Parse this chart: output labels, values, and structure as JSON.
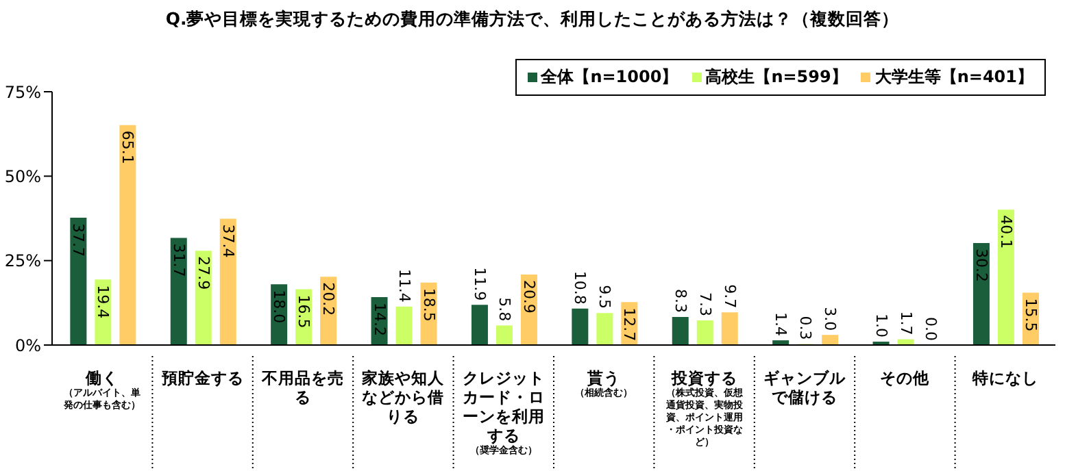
{
  "chart_data": {
    "type": "bar",
    "title": "Q.夢や目標を実現するための費用の準備方法で、利用したことがある方法は？（複数回答）",
    "categories": [
      "働く（アルバイト、単発の仕事も含む）",
      "預貯金する",
      "不用品を売る",
      "家族や知人などから借りる",
      "クレジットカード・ローンを利用する（奨学金含む）",
      "貰う（相続含む）",
      "投資する（株式投資、仮想通貨投資、実物投資、ポイント運用・ポイント投資など）",
      "ギャンブルで儲ける",
      "その他",
      "特になし"
    ],
    "series": [
      {
        "name": "全体【n=1000】",
        "color": "#1b5e3b",
        "values": [
          37.7,
          31.7,
          18.0,
          14.2,
          11.9,
          10.8,
          8.3,
          1.4,
          1.0,
          30.2
        ],
        "value_labels": [
          "37.7",
          "31.7",
          "18.0",
          "14.2",
          "11.9",
          "10.8",
          "8.3",
          "1.4",
          "1.0",
          "30.2"
        ]
      },
      {
        "name": "高校生【n=599】",
        "color": "#ccff66",
        "values": [
          19.4,
          27.9,
          16.5,
          11.4,
          5.8,
          9.5,
          7.3,
          0.3,
          1.7,
          40.1
        ],
        "value_labels": [
          "19.4",
          "27.9",
          "16.5",
          "11.4",
          "5.8",
          "9.5",
          "7.3",
          "0.3",
          "1.7",
          "40.1"
        ]
      },
      {
        "name": "大学生等【n=401】",
        "color": "#ffcc66",
        "values": [
          65.1,
          37.4,
          20.2,
          18.5,
          20.9,
          12.7,
          9.7,
          3.0,
          0.0,
          15.5
        ],
        "value_labels": [
          "65.1",
          "37.4",
          "20.2",
          "18.5",
          "20.9",
          "12.7",
          "9.7",
          "3.0",
          "0.0",
          "15.5"
        ]
      }
    ],
    "ylim": [
      0,
      75
    ],
    "yticks": [
      {
        "value": 0,
        "label": "0%"
      },
      {
        "value": 25,
        "label": "25%"
      },
      {
        "value": 50,
        "label": "50%"
      },
      {
        "value": 75,
        "label": "75%"
      }
    ],
    "grid": false,
    "legend": "top right"
  }
}
